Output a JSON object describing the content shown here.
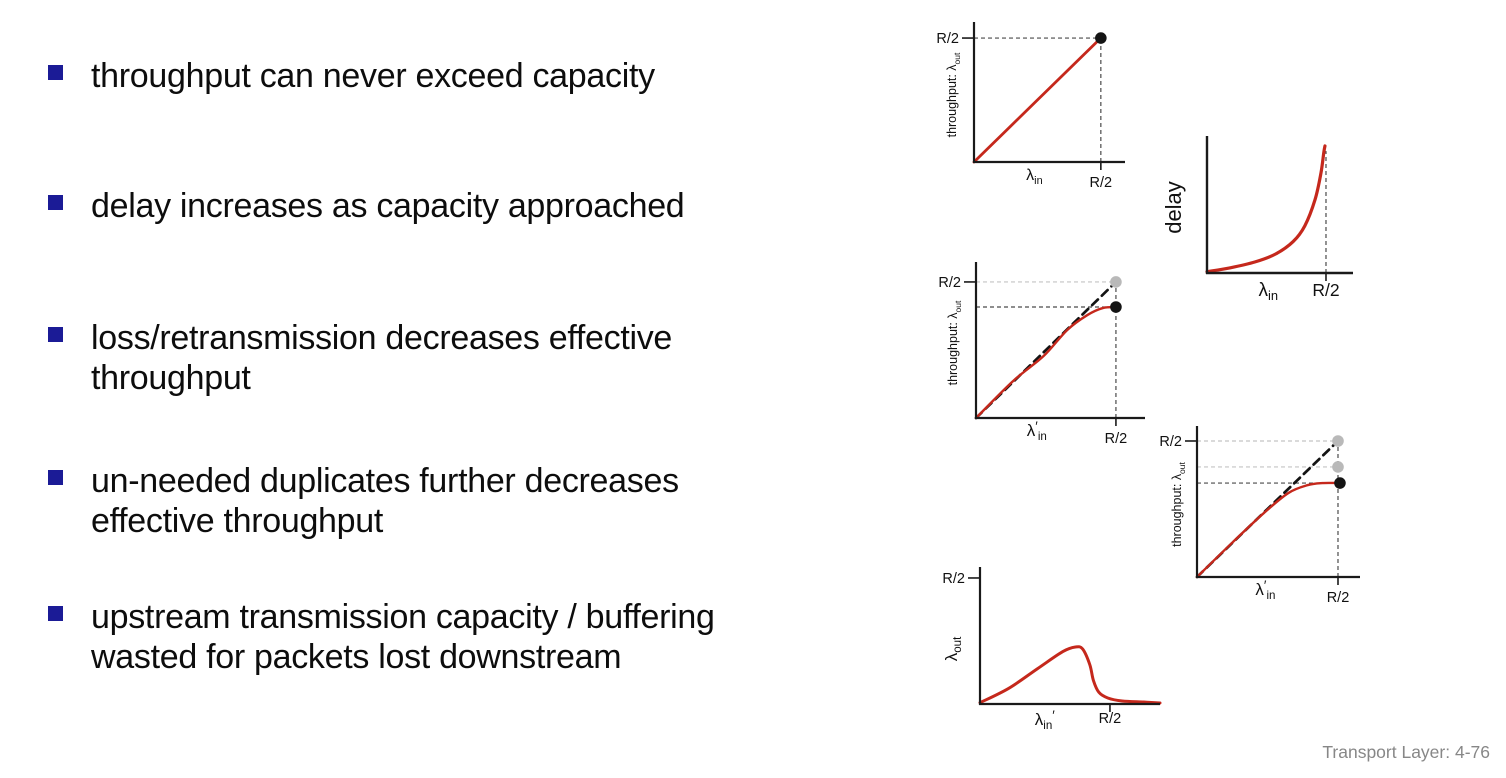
{
  "slide": {
    "bullets": [
      {
        "lines": [
          "throughput can never exceed capacity"
        ]
      },
      {
        "lines": [
          "delay increases as capacity approached"
        ]
      },
      {
        "lines": [
          "loss/retransmission decreases effective",
          "throughput"
        ]
      },
      {
        "lines": [
          "un-needed duplicates further decreases",
          "effective throughput"
        ]
      },
      {
        "lines": [
          "upstream transmission capacity / buffering",
          "wasted for packets lost downstream"
        ]
      }
    ],
    "footer": "Transport Layer: 4-76",
    "colors": {
      "bullet_marker": "#1b1b96",
      "text": "#0d0d0d",
      "footer_text": "#878787"
    }
  },
  "palette": {
    "red": "#c5281c",
    "dash": "#141414",
    "axis": "#1a1a1a",
    "dot_gray": "#b9b9b9",
    "dot_black": "#141414",
    "guide_dark": "#4a4a4a",
    "guide_light": "#c3c3c3",
    "label_text": "#111111"
  },
  "chart_data": [
    {
      "name": "throughput-vs-offered-load-ideal",
      "type": "line",
      "title": "",
      "xlabel": [
        {
          "t": "λ"
        },
        {
          "t": "in",
          "sub": true
        }
      ],
      "ylabel": [
        {
          "t": "throughput: λ"
        },
        {
          "t": "out",
          "sub": true
        }
      ],
      "xticks": [
        {
          "label": "R/2",
          "x": 0.84
        }
      ],
      "yticks": [
        {
          "label": "R/2",
          "y": 0.925
        }
      ],
      "xlim": [
        "0",
        "R/2"
      ],
      "ylim": [
        "0",
        "R/2"
      ],
      "series": [
        {
          "name": "throughput",
          "style": "solid",
          "color_key": "red",
          "width": 2.8,
          "points": [
            [
              0,
              0
            ],
            [
              0.84,
              0.925
            ]
          ]
        }
      ],
      "guides": [
        {
          "dir": "h",
          "at": 0.925,
          "from": 0,
          "to": 0.84,
          "tone": "dark"
        },
        {
          "dir": "v",
          "at": 0.84,
          "from": 0,
          "to": 0.925,
          "tone": "dark"
        }
      ],
      "dots": [
        {
          "x": 0.84,
          "y": 0.925,
          "tone": "black"
        }
      ]
    },
    {
      "name": "delay-vs-offered-load",
      "type": "line",
      "title": "",
      "xlabel": [
        {
          "t": "λ"
        },
        {
          "t": "in",
          "sub": true
        }
      ],
      "ylabel": [
        {
          "t": "delay"
        }
      ],
      "xticks": [
        {
          "label": "R/2",
          "x": 0.815
        }
      ],
      "yticks": [],
      "xlim": [
        "0",
        "R/2"
      ],
      "series": [
        {
          "name": "delay",
          "style": "solid",
          "color_key": "red",
          "width": 3.2,
          "points": [
            [
              0,
              0.01
            ],
            [
              0.16,
              0.04
            ],
            [
              0.33,
              0.085
            ],
            [
              0.47,
              0.145
            ],
            [
              0.59,
              0.24
            ],
            [
              0.67,
              0.36
            ],
            [
              0.74,
              0.56
            ],
            [
              0.78,
              0.76
            ],
            [
              0.8,
              0.92
            ],
            [
              0.808,
              0.97
            ]
          ]
        }
      ],
      "guides": [
        {
          "dir": "v",
          "at": 0.815,
          "from": 0,
          "to": 0.93,
          "tone": "dark"
        }
      ],
      "dots": []
    },
    {
      "name": "throughput-with-retransmission",
      "type": "line",
      "title": "",
      "xlabel": [
        {
          "t": "λ"
        },
        {
          "t": "′",
          "prime": true
        },
        {
          "t": "in",
          "sub": true
        }
      ],
      "ylabel": [
        {
          "t": "throughput: λ"
        },
        {
          "t": "out",
          "sub": true
        }
      ],
      "xticks": [
        {
          "label": "R/2",
          "x": 0.828
        }
      ],
      "yticks": [
        {
          "label": "R/2",
          "y": 0.907
        }
      ],
      "xlim": [
        "0",
        "R/2"
      ],
      "ylim": [
        "0",
        "R/2"
      ],
      "series": [
        {
          "name": "ideal no-loss",
          "style": "dashed",
          "color_key": "dash",
          "width": 2.7,
          "points": [
            [
              0,
              0
            ],
            [
              0.828,
              0.907
            ]
          ]
        },
        {
          "name": "effective throughput",
          "style": "solid",
          "color_key": "red",
          "width": 2.4,
          "points": [
            [
              0,
              0
            ],
            [
              0.22,
              0.247
            ],
            [
              0.4,
              0.413
            ],
            [
              0.54,
              0.587
            ],
            [
              0.66,
              0.687
            ],
            [
              0.75,
              0.733
            ],
            [
              0.828,
              0.74
            ]
          ]
        }
      ],
      "guides": [
        {
          "dir": "h",
          "at": 0.907,
          "from": 0,
          "to": 0.828,
          "tone": "light"
        },
        {
          "dir": "h",
          "at": 0.74,
          "from": 0,
          "to": 0.828,
          "tone": "dark"
        },
        {
          "dir": "v",
          "at": 0.828,
          "from": 0,
          "to": 0.907,
          "tone": "dark"
        }
      ],
      "dots": [
        {
          "x": 0.828,
          "y": 0.907,
          "tone": "gray"
        },
        {
          "x": 0.828,
          "y": 0.74,
          "tone": "black"
        }
      ]
    },
    {
      "name": "throughput-with-duplicates",
      "type": "line",
      "title": "",
      "xlabel": [
        {
          "t": "λ"
        },
        {
          "t": "′",
          "prime": true
        },
        {
          "t": "in",
          "sub": true
        }
      ],
      "ylabel": [
        {
          "t": "throughput: λ"
        },
        {
          "t": "out",
          "sub": true
        }
      ],
      "xticks": [
        {
          "label": "R/2",
          "x": 0.865
        }
      ],
      "yticks": [
        {
          "label": "R/2",
          "y": 0.938
        }
      ],
      "xlim": [
        "0",
        "R/2"
      ],
      "ylim": [
        "0",
        "R/2"
      ],
      "series": [
        {
          "name": "ideal no-loss",
          "style": "dashed",
          "color_key": "dash",
          "width": 2.7,
          "points": [
            [
              0,
              0
            ],
            [
              0.865,
              0.938
            ]
          ]
        },
        {
          "name": "effective throughput",
          "style": "solid",
          "color_key": "red",
          "width": 2.4,
          "points": [
            [
              0,
              0
            ],
            [
              0.22,
              0.241
            ],
            [
              0.41,
              0.441
            ],
            [
              0.56,
              0.579
            ],
            [
              0.68,
              0.634
            ],
            [
              0.77,
              0.648
            ],
            [
              0.877,
              0.648
            ]
          ]
        }
      ],
      "guides": [
        {
          "dir": "h",
          "at": 0.938,
          "from": 0,
          "to": 0.865,
          "tone": "light"
        },
        {
          "dir": "h",
          "at": 0.759,
          "from": 0,
          "to": 0.865,
          "tone": "light"
        },
        {
          "dir": "h",
          "at": 0.648,
          "from": 0,
          "to": 0.865,
          "tone": "dark"
        },
        {
          "dir": "v",
          "at": 0.865,
          "from": 0,
          "to": 0.938,
          "tone": "dark"
        }
      ],
      "dots": [
        {
          "x": 0.865,
          "y": 0.938,
          "tone": "gray"
        },
        {
          "x": 0.865,
          "y": 0.759,
          "tone": "gray"
        },
        {
          "x": 0.877,
          "y": 0.648,
          "tone": "black"
        }
      ]
    },
    {
      "name": "congestion-collapse",
      "type": "line",
      "title": "",
      "xlabel": [
        {
          "t": "λ"
        },
        {
          "t": "in",
          "sub": true
        },
        {
          "t": "′",
          "prime": true
        }
      ],
      "ylabel": [
        {
          "t": "λ"
        },
        {
          "t": "out",
          "sub": true
        }
      ],
      "xticks": [
        {
          "label": "R/2",
          "x": 0.722
        }
      ],
      "yticks": [
        {
          "label": "R/2",
          "y": 0.962
        }
      ],
      "xlim": [
        "0",
        "beyond R/2"
      ],
      "ylim": [
        "0",
        "R/2"
      ],
      "series": [
        {
          "name": "goodput",
          "style": "solid",
          "color_key": "red",
          "width": 3.0,
          "points": [
            [
              0,
              0.01
            ],
            [
              0.16,
              0.12
            ],
            [
              0.32,
              0.27
            ],
            [
              0.46,
              0.4
            ],
            [
              0.53,
              0.435
            ],
            [
              0.57,
              0.42
            ],
            [
              0.61,
              0.3
            ],
            [
              0.63,
              0.18
            ],
            [
              0.66,
              0.09
            ],
            [
              0.71,
              0.046
            ],
            [
              0.79,
              0.023
            ],
            [
              0.91,
              0.015
            ],
            [
              1.0,
              0.008
            ]
          ]
        }
      ],
      "guides": [],
      "dots": []
    }
  ]
}
